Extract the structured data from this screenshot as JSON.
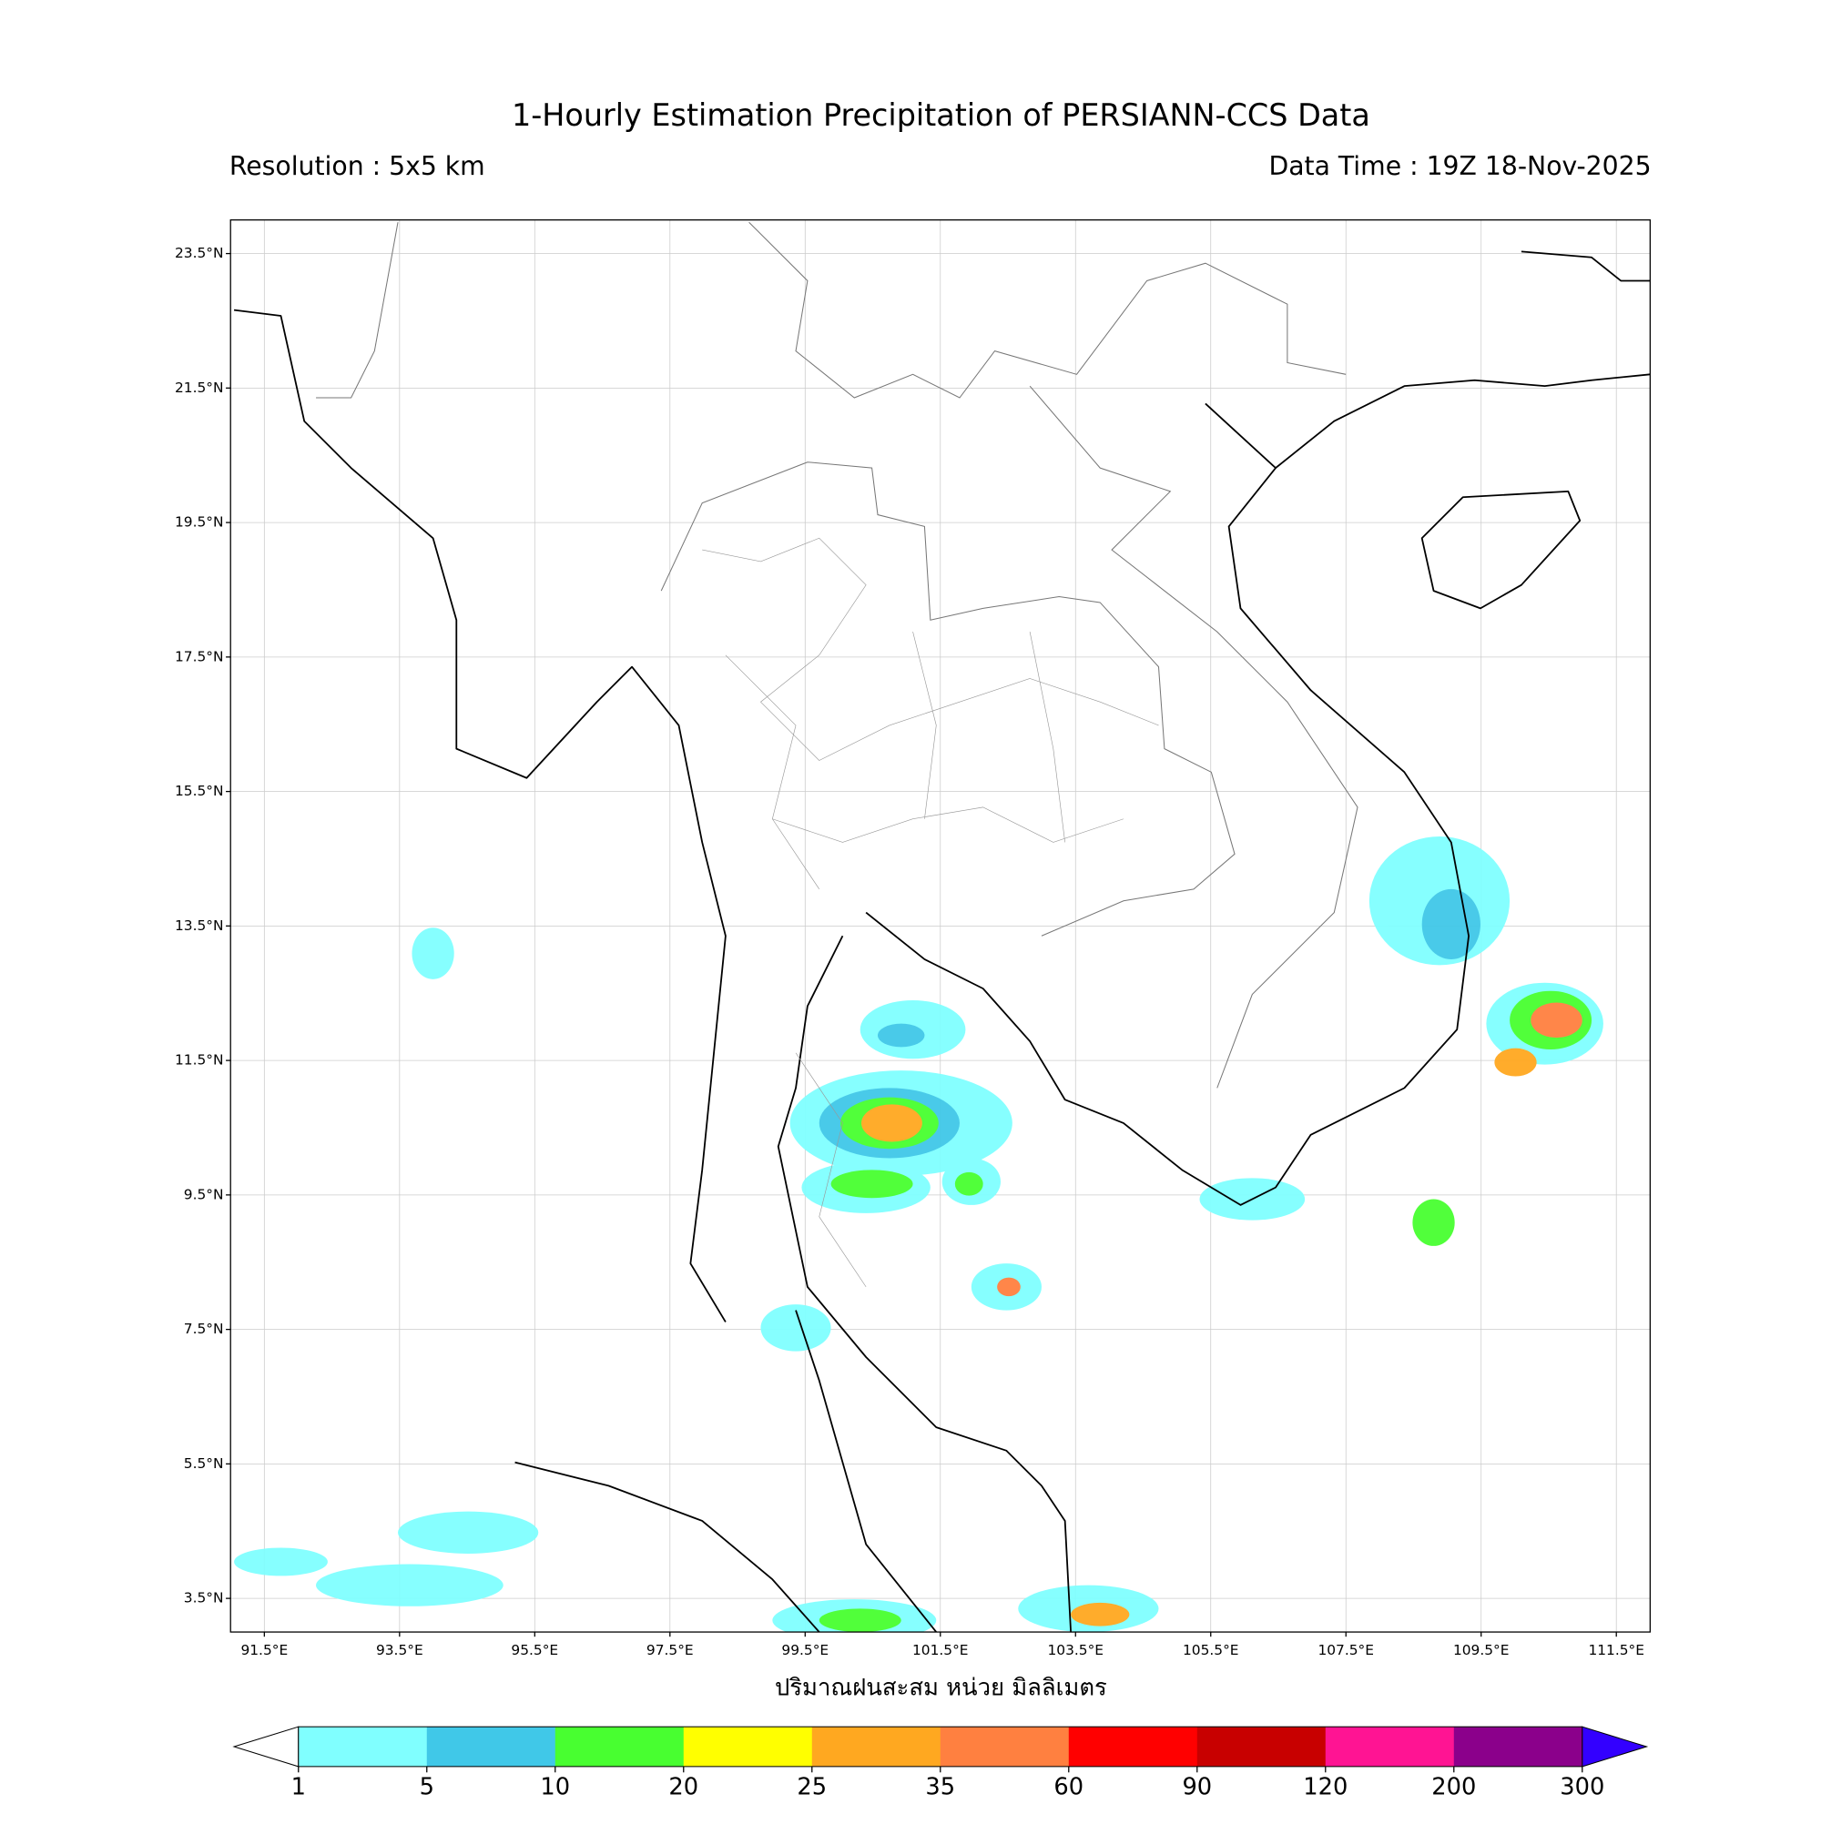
{
  "chart_data": {
    "type": "map",
    "title": "1-Hourly Estimation Precipitation of PERSIANN-CCS Data",
    "resolution": "Resolution : 5x5 km",
    "data_time": "Data Time : 19Z 18-Nov-2025",
    "xlabel": "ปริมาณฝนสะสม หน่วย มิลลิเมตร",
    "xlim": [
      91,
      112
    ],
    "ylim": [
      3,
      24
    ],
    "xticks": [
      {
        "value": 91.5,
        "label": "91.5°E"
      },
      {
        "value": 93.5,
        "label": "93.5°E"
      },
      {
        "value": 95.5,
        "label": "95.5°E"
      },
      {
        "value": 97.5,
        "label": "97.5°E"
      },
      {
        "value": 99.5,
        "label": "99.5°E"
      },
      {
        "value": 101.5,
        "label": "101.5°E"
      },
      {
        "value": 103.5,
        "label": "103.5°E"
      },
      {
        "value": 105.5,
        "label": "105.5°E"
      },
      {
        "value": 107.5,
        "label": "107.5°E"
      },
      {
        "value": 109.5,
        "label": "109.5°E"
      },
      {
        "value": 111.5,
        "label": "111.5°E"
      }
    ],
    "yticks": [
      {
        "value": 3.5,
        "label": "3.5°N"
      },
      {
        "value": 5.5,
        "label": "5.5°N"
      },
      {
        "value": 7.5,
        "label": "7.5°N"
      },
      {
        "value": 9.5,
        "label": "9.5°N"
      },
      {
        "value": 11.5,
        "label": "11.5°N"
      },
      {
        "value": 13.5,
        "label": "13.5°N"
      },
      {
        "value": 15.5,
        "label": "15.5°N"
      },
      {
        "value": 17.5,
        "label": "17.5°N"
      },
      {
        "value": 19.5,
        "label": "19.5°N"
      },
      {
        "value": 21.5,
        "label": "21.5°N"
      },
      {
        "value": 23.5,
        "label": "23.5°N"
      }
    ],
    "grid": true,
    "colorbar": {
      "ticks": [
        1,
        5,
        10,
        20,
        25,
        35,
        60,
        90,
        120,
        200,
        300
      ],
      "colors": [
        "#80ffff",
        "#40c8e8",
        "#48ff30",
        "#ffff00",
        "#ffa820",
        "#ff8040",
        "#ff0000",
        "#c80000",
        "#ff1493",
        "#8b008b"
      ],
      "under_color": "#ffffff",
      "over_color": "#3300ff"
    }
  }
}
